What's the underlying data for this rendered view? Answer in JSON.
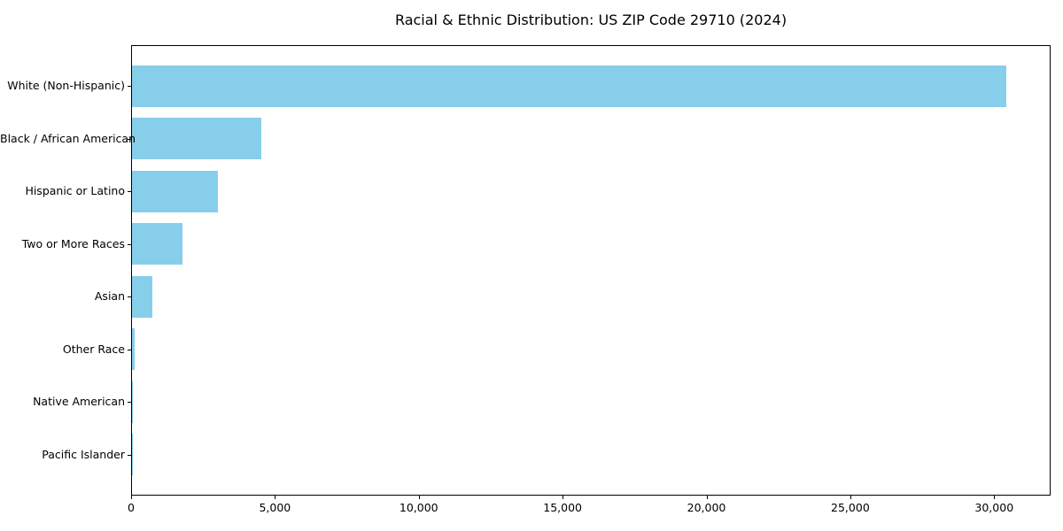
{
  "chart_data": {
    "type": "bar",
    "orientation": "horizontal",
    "title": "Racial & Ethnic Distribution: US ZIP Code 29710 (2024)",
    "categories": [
      "White (Non-Hispanic)",
      "Black / African American",
      "Hispanic or Latino",
      "Two or More Races",
      "Asian",
      "Other Race",
      "Native American",
      "Pacific Islander"
    ],
    "values": [
      30400,
      4500,
      3000,
      1750,
      700,
      100,
      45,
      10
    ],
    "xlabel": "",
    "ylabel": "",
    "xlim": [
      0,
      31900
    ],
    "x_ticks": [
      0,
      5000,
      10000,
      15000,
      20000,
      25000,
      30000
    ],
    "x_tick_labels": [
      "0",
      "5,000",
      "10,000",
      "15,000",
      "20,000",
      "25,000",
      "30,000"
    ],
    "bar_color": "#87CEEB",
    "axis_color": "#000000",
    "grid": false,
    "legend": false
  }
}
